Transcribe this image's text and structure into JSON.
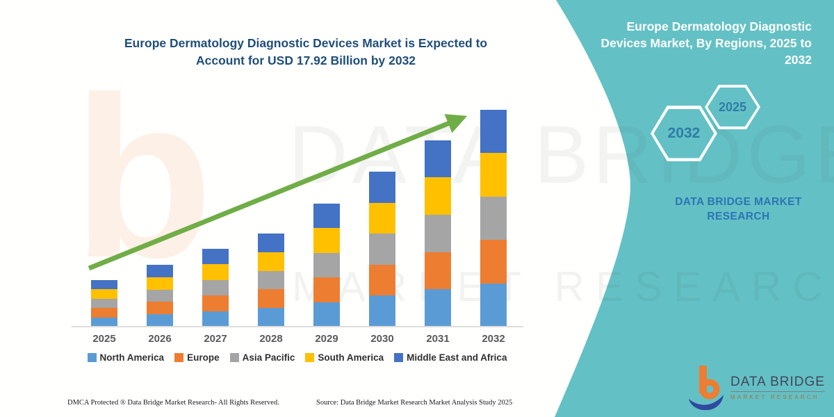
{
  "chart_title": [
    "Europe Dermatology Diagnostic Devices Market is Expected to",
    "Account for USD 17.92 Billion by 2032"
  ],
  "chart_data": {
    "type": "bar",
    "stacked": true,
    "title": "Europe Dermatology Diagnostic Devices Market is Expected to Account for USD 17.92 Billion by 2032",
    "unit": "USD Billion",
    "categories": [
      "2025",
      "2026",
      "2027",
      "2028",
      "2029",
      "2030",
      "2031",
      "2032"
    ],
    "series": [
      {
        "name": "North America",
        "color": "#5B9BD5",
        "values": [
          0.77,
          1.02,
          1.29,
          1.54,
          2.03,
          2.56,
          3.08,
          3.58
        ]
      },
      {
        "name": "Europe",
        "color": "#ED7D31",
        "values": [
          0.77,
          1.02,
          1.29,
          1.54,
          2.03,
          2.56,
          3.08,
          3.58
        ]
      },
      {
        "name": "Asia Pacific",
        "color": "#A5A5A5",
        "values": [
          0.77,
          1.02,
          1.29,
          1.54,
          2.03,
          2.56,
          3.08,
          3.58
        ]
      },
      {
        "name": "South America",
        "color": "#FFC000",
        "values": [
          0.77,
          1.02,
          1.29,
          1.54,
          2.03,
          2.56,
          3.08,
          3.58
        ]
      },
      {
        "name": "Middle East and Africa",
        "color": "#4472C4",
        "values": [
          0.77,
          1.02,
          1.29,
          1.54,
          2.03,
          2.56,
          3.08,
          3.58
        ]
      }
    ],
    "totals": [
      3.85,
      5.11,
      6.43,
      7.7,
      10.17,
      12.81,
      15.39,
      17.92
    ],
    "ylim": [
      0,
      18
    ],
    "values_estimated_from_pixels": true,
    "anchor": "2032 total = USD 17.92 Billion",
    "legend_position": "bottom",
    "grid": false,
    "trend_arrow_color": "#70AD47"
  },
  "side_panel": {
    "title_lines": [
      "Europe Dermatology Diagnostic",
      "Devices Market, By Regions, 2025 to",
      "2032"
    ],
    "hexagons": [
      "2032",
      "2025"
    ],
    "brand_text": "DATA BRIDGE MARKET RESEARCH",
    "panel_color": "#63C1C5",
    "hex_year_color": "#2F7CA8"
  },
  "footer": {
    "dmca": "DMCA Protected ® Data Bridge Market Research-  All Rights Reserved.",
    "source": "Source: Data Bridge Market Research  Market Analysis Study 2025"
  },
  "logo": {
    "name": "DATA BRIDGE",
    "tagline": "MARKET RESEARCH"
  },
  "watermarks": {
    "big_letter": "b",
    "line1": "DATA BRIDGE",
    "line2": "MARKET RESEARCH"
  }
}
